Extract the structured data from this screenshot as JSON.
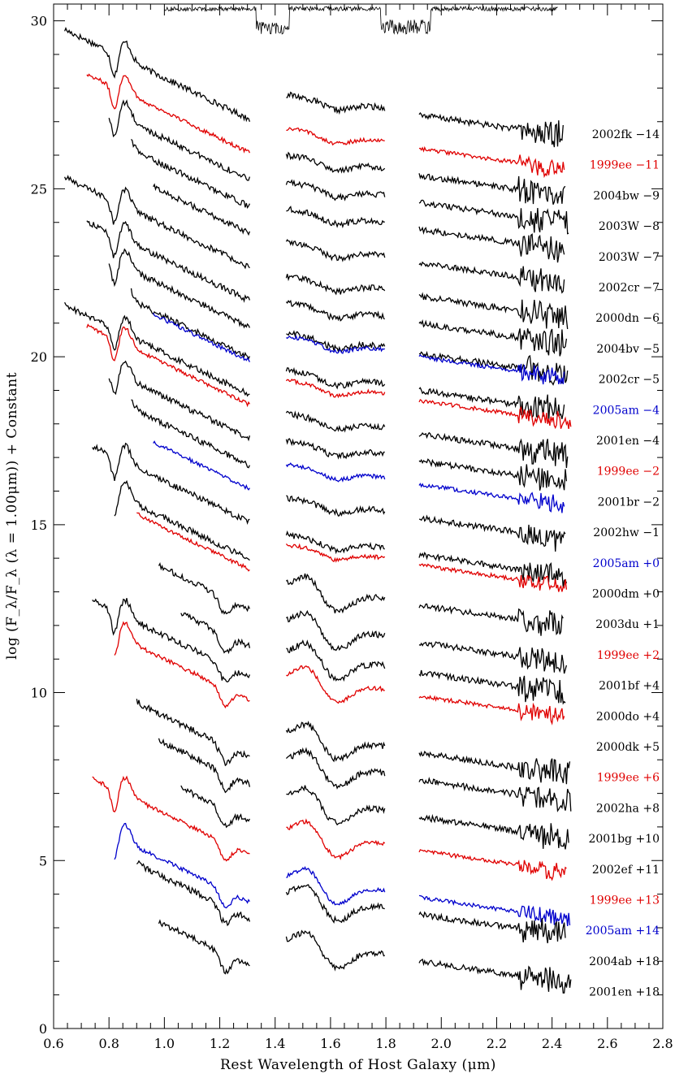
{
  "chart_data": {
    "type": "line",
    "xlabel": "Rest Wavelength of Host Galaxy (μm)",
    "ylabel": "log (F_λ/F_λ (λ = 1.00μm)) +  Constant",
    "xlim": [
      0.6,
      2.8
    ],
    "ylim": [
      0,
      30.5
    ],
    "x_ticks": [
      "0.6",
      "0.8",
      "1.0",
      "1.2",
      "1.4",
      "1.6",
      "1.8",
      "2.0",
      "2.2",
      "2.4",
      "2.6",
      "2.8"
    ],
    "y_ticks": [
      "0",
      "5",
      "10",
      "15",
      "20",
      "25",
      "30"
    ],
    "bands": [
      [
        0.64,
        1.31
      ],
      [
        1.44,
        1.8
      ],
      [
        1.92,
        2.44
      ]
    ],
    "telluric_band": {
      "y_top": 30.5,
      "y_bottom": 29.6,
      "gaps": [
        [
          1.33,
          1.45
        ],
        [
          1.78,
          1.96
        ]
      ]
    },
    "colors": {
      "black": "#000000",
      "red": "#e00000",
      "blue": "#0000cc"
    },
    "spectra": [
      {
        "label": "2002fk −14",
        "color": "#000000",
        "offset": 27.0
      },
      {
        "label": "1999ee −11",
        "color": "#e00000",
        "offset": 26.0
      },
      {
        "label": "2004bw  −9",
        "color": "#000000",
        "offset": 25.2
      },
      {
        "label": "2003W  −8",
        "color": "#000000",
        "offset": 24.4
      },
      {
        "label": "2003W  −7",
        "color": "#000000",
        "offset": 23.6
      },
      {
        "label": "2002cr  −7",
        "color": "#000000",
        "offset": 22.6
      },
      {
        "label": "2000dn  −6",
        "color": "#000000",
        "offset": 21.6
      },
      {
        "label": "2004bv  −5",
        "color": "#000000",
        "offset": 20.8
      },
      {
        "label": "2002cr  −5",
        "color": "#000000",
        "offset": 19.9
      },
      {
        "label": "2005am  −4",
        "color": "#0000cc",
        "offset": 19.8
      },
      {
        "label": "2001en  −4",
        "color": "#000000",
        "offset": 18.8
      },
      {
        "label": "1999ee  −2",
        "color": "#e00000",
        "offset": 18.5
      },
      {
        "label": "2001br  −2",
        "color": "#000000",
        "offset": 17.5
      },
      {
        "label": "2002hw  −1",
        "color": "#000000",
        "offset": 16.7
      },
      {
        "label": "2005am  +0",
        "color": "#0000cc",
        "offset": 16.0
      },
      {
        "label": "2000dm  +0",
        "color": "#000000",
        "offset": 15.0
      },
      {
        "label": "2003du  +1",
        "color": "#000000",
        "offset": 13.9
      },
      {
        "label": "1999ee  +2",
        "color": "#e00000",
        "offset": 13.6
      },
      {
        "label": "2001bf  +4",
        "color": "#000000",
        "offset": 12.4
      },
      {
        "label": "2000do  +4",
        "color": "#000000",
        "offset": 11.3
      },
      {
        "label": "2000dk  +5",
        "color": "#000000",
        "offset": 10.4
      },
      {
        "label": "1999ee  +6",
        "color": "#e00000",
        "offset": 9.7
      },
      {
        "label": "2002ha  +8",
        "color": "#000000",
        "offset": 8.0
      },
      {
        "label": "2001bg +10",
        "color": "#000000",
        "offset": 7.2
      },
      {
        "label": "2002ef +11",
        "color": "#000000",
        "offset": 6.1
      },
      {
        "label": "1999ee +13",
        "color": "#e00000",
        "offset": 5.1
      },
      {
        "label": "2005am +14",
        "color": "#0000cc",
        "offset": 3.7
      },
      {
        "label": "2004ab +18",
        "color": "#000000",
        "offset": 3.2
      },
      {
        "label": "2001en +18",
        "color": "#000000",
        "offset": 1.8
      }
    ]
  }
}
